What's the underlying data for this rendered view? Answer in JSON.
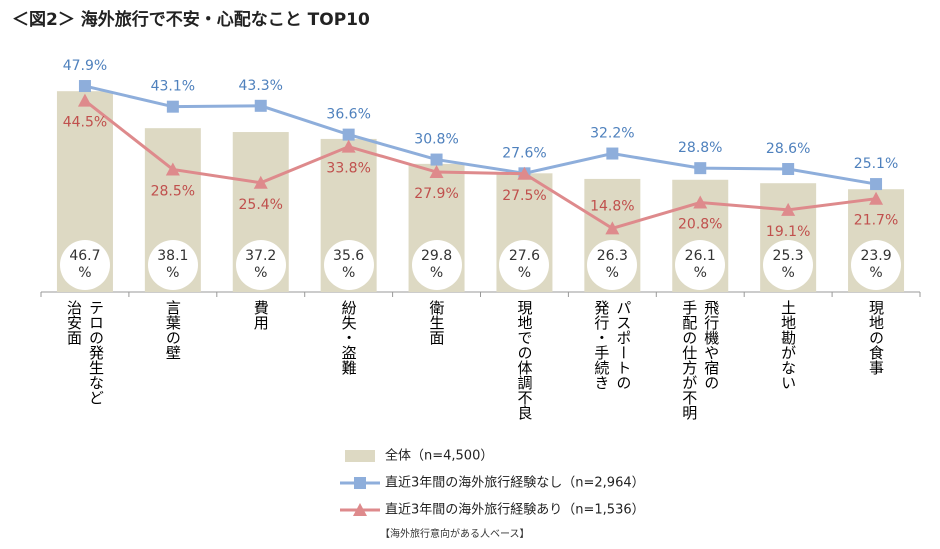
{
  "chart_data": {
    "type": "bar_line",
    "title": "＜図2＞ 海外旅行で不安・心配なこと TOP10",
    "categories": [
      "テロの発生など\n治安面",
      "言葉の壁",
      "費用",
      "紛失・盗難",
      "衛生面",
      "現地での体調不良",
      "パスポートの\n発行・手続き",
      "飛行機や宿の\n手配の仕方が不明",
      "土地勘がない",
      "現地の食事"
    ],
    "ylim": [
      0,
      50
    ],
    "series": [
      {
        "name": "全体（n=4,500）",
        "type": "bar",
        "color": "#ddd9c3",
        "values": [
          46.7,
          38.1,
          37.2,
          35.6,
          29.8,
          27.6,
          26.3,
          26.1,
          25.3,
          23.9
        ],
        "value_labels": [
          "46.7\n%",
          "38.1\n%",
          "37.2\n%",
          "35.6\n%",
          "29.8\n%",
          "27.6\n%",
          "26.3\n%",
          "26.1\n%",
          "25.3\n%",
          "23.9\n%"
        ]
      },
      {
        "name": "直近3年間の海外旅行経験なし（n=2,964）",
        "type": "line",
        "marker": "square",
        "color": "#8eaedb",
        "label_color": "#4f81bd",
        "values": [
          47.9,
          43.1,
          43.3,
          36.6,
          30.8,
          27.6,
          32.2,
          28.8,
          28.6,
          25.1
        ],
        "value_labels": [
          "47.9%",
          "43.1%",
          "43.3%",
          "36.6%",
          "30.8%",
          "27.6%",
          "32.2%",
          "28.8%",
          "28.6%",
          "25.1%"
        ]
      },
      {
        "name": "直近3年間の海外旅行経験あり（n=1,536）",
        "type": "line",
        "marker": "triangle",
        "color": "#de8a8c",
        "label_color": "#c0504d",
        "values": [
          44.5,
          28.5,
          25.4,
          33.8,
          27.9,
          27.5,
          14.8,
          20.8,
          19.1,
          21.7
        ],
        "value_labels": [
          "44.5%",
          "28.5%",
          "25.4%",
          "33.8%",
          "27.9%",
          "27.5%",
          "14.8%",
          "20.8%",
          "19.1%",
          "21.7%"
        ]
      }
    ],
    "note": "【海外旅行意向がある人ベース】"
  }
}
